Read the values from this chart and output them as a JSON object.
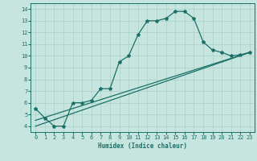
{
  "xlabel": "Humidex (Indice chaleur)",
  "background_color": "#c5e5de",
  "line_color": "#1a7068",
  "grid_color": "#aad0c8",
  "xlim": [
    -0.5,
    23.5
  ],
  "ylim": [
    3.5,
    14.5
  ],
  "xticks": [
    0,
    1,
    2,
    3,
    4,
    5,
    6,
    7,
    8,
    9,
    10,
    11,
    12,
    13,
    14,
    15,
    16,
    17,
    18,
    19,
    20,
    21,
    22,
    23
  ],
  "yticks": [
    4,
    5,
    6,
    7,
    8,
    9,
    10,
    11,
    12,
    13,
    14
  ],
  "line_main": {
    "x": [
      0,
      1,
      2,
      3,
      4,
      5,
      6,
      7,
      8,
      9,
      10,
      11,
      12,
      13,
      14,
      15,
      16,
      17,
      18,
      19,
      20,
      21,
      22,
      23
    ],
    "y": [
      5.5,
      4.7,
      4.0,
      4.0,
      6.0,
      6.0,
      6.2,
      7.2,
      7.2,
      9.5,
      10.0,
      11.8,
      13.0,
      13.0,
      13.2,
      13.8,
      13.8,
      13.2,
      11.2,
      10.5,
      10.3,
      10.0,
      10.1,
      10.3
    ]
  },
  "line_diag1": {
    "x": [
      0,
      23
    ],
    "y": [
      4.0,
      10.3
    ]
  },
  "line_diag2": {
    "x": [
      0,
      23
    ],
    "y": [
      4.5,
      10.3
    ]
  }
}
